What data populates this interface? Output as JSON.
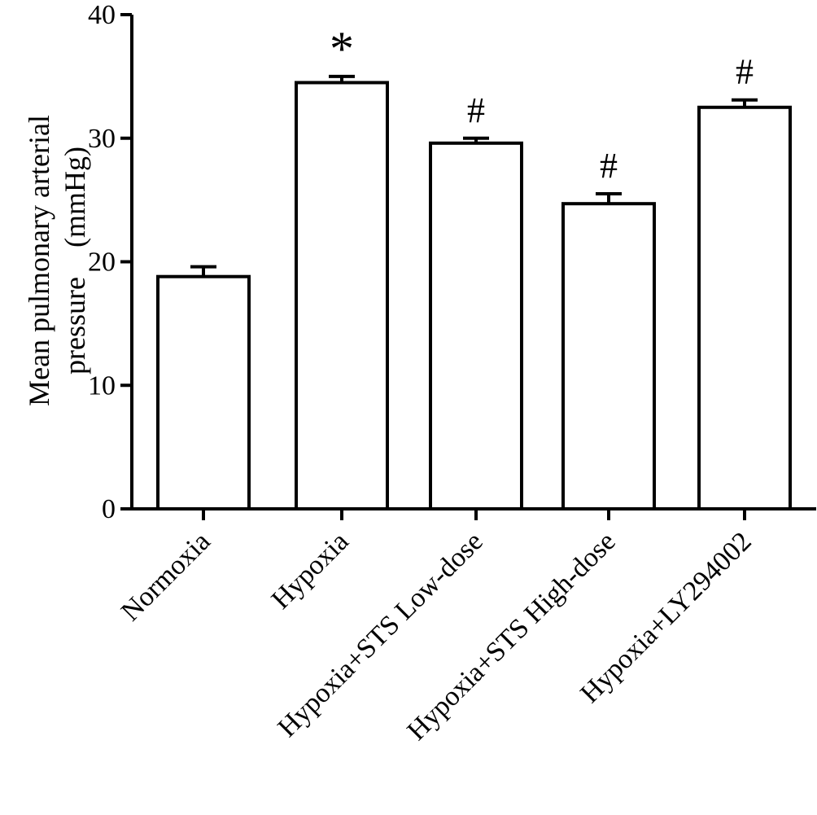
{
  "chart_data": {
    "type": "bar",
    "categories": [
      "Normoxia",
      "Hypoxia",
      "Hypoxia+STS Low-dose",
      "Hypoxia+STS High-dose",
      "Hypoxia+LY294002"
    ],
    "values": [
      18.8,
      34.5,
      29.6,
      24.7,
      32.5
    ],
    "errors": [
      0.8,
      0.5,
      0.4,
      0.8,
      0.6
    ],
    "significance": [
      "",
      "*",
      "#",
      "#",
      "#"
    ],
    "ylabel_line1": "Mean pulmonary arterial",
    "ylabel_line2": "pressure　(mmHg)",
    "xlabel": "",
    "title": "",
    "ylim": [
      0,
      40
    ],
    "yticks": [
      0,
      10,
      20,
      30,
      40
    ],
    "grid": false,
    "bar_fill": "#ffffff",
    "bar_stroke": "#000000"
  }
}
